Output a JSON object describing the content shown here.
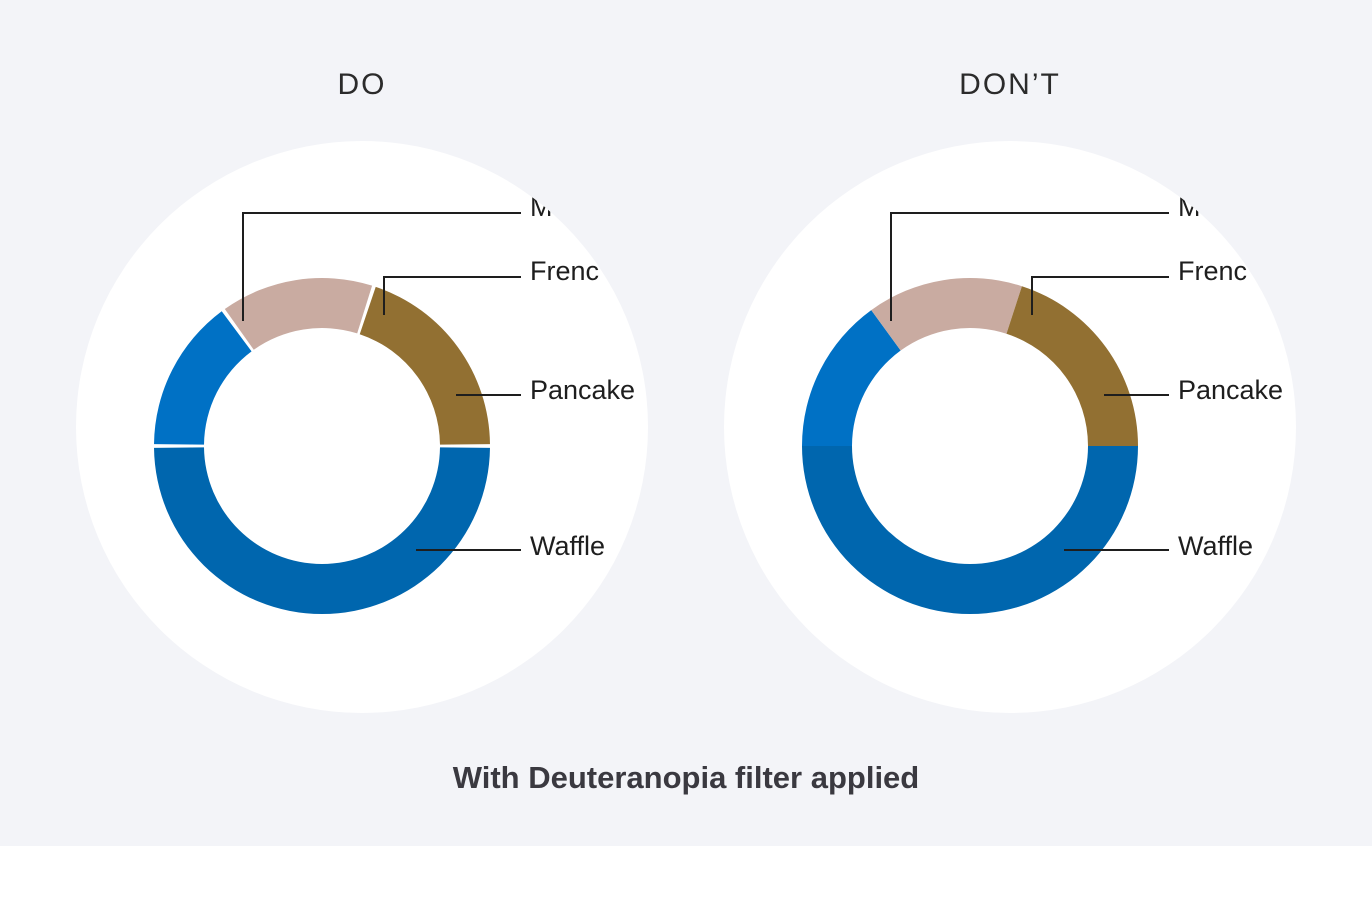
{
  "caption": "With Deuteranopia filter applied",
  "chart_data": [
    {
      "type": "pie",
      "title": "DO",
      "donut": true,
      "segment_gaps": true,
      "categories": [
        "Waffle",
        "Pancake",
        "French toast",
        "Muffin"
      ],
      "values": [
        50,
        15,
        15,
        20
      ],
      "labels": [
        "Waffle",
        "Pancake",
        "Frenc",
        "M"
      ],
      "colors": [
        "#0066ae",
        "#0071c5",
        "#c9aba1",
        "#927032"
      ]
    },
    {
      "type": "pie",
      "title": "DON’T",
      "donut": true,
      "segment_gaps": false,
      "categories": [
        "Waffle",
        "Pancake",
        "French toast",
        "Muffin"
      ],
      "values": [
        50,
        15,
        15,
        20
      ],
      "labels": [
        "Waffle",
        "Pancake",
        "Frenc",
        "M"
      ],
      "colors": [
        "#0066ae",
        "#0071c5",
        "#c9aba1",
        "#927032"
      ]
    }
  ]
}
